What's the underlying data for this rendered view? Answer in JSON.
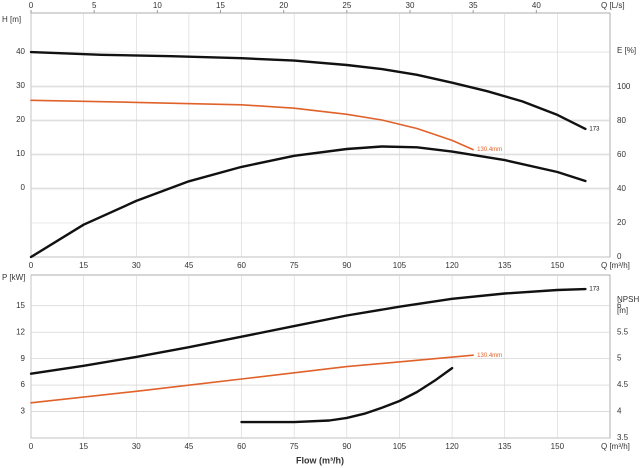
{
  "chart_data": [
    {
      "type": "line",
      "ylabel": "H [m]",
      "y2label": "E [%]",
      "x_axis_unit": "Q [m³/h]",
      "x2label": "Q [L/s]",
      "xlim": [
        0,
        165
      ],
      "xticks": [
        0,
        15,
        30,
        45,
        60,
        75,
        90,
        105,
        120,
        135,
        150
      ],
      "x2lim": [
        0,
        45.83
      ],
      "x2ticks": [
        0,
        5,
        10,
        15,
        20,
        25,
        30,
        35,
        40
      ],
      "ylim": [
        -20.3,
        51.5
      ],
      "yticks": [
        0,
        10,
        20,
        30,
        40
      ],
      "y2lim": [
        0,
        143.5
      ],
      "y2ticks": [
        0,
        20,
        40,
        60,
        80,
        100
      ],
      "grid": true,
      "series": [
        {
          "name": "173",
          "color": "#111111",
          "x": [
            0,
            20,
            40,
            60,
            75,
            90,
            100,
            110,
            120,
            130,
            140,
            150,
            158
          ],
          "values": [
            40,
            39.2,
            38.8,
            38.2,
            37.5,
            36.2,
            35,
            33.3,
            31,
            28.5,
            25.5,
            21.5,
            17.4
          ]
        },
        {
          "name": "130.4mm",
          "color": "#e0622a",
          "x": [
            0,
            30,
            60,
            75,
            90,
            100,
            110,
            120,
            126
          ],
          "values": [
            25.8,
            25.2,
            24.5,
            23.5,
            21.7,
            20,
            17.5,
            14,
            11.3
          ]
        },
        {
          "color": "#111111",
          "axis": "y2",
          "x": [
            0,
            15,
            30,
            45,
            60,
            75,
            90,
            100,
            110,
            120,
            135,
            150,
            158
          ],
          "values": [
            0,
            19,
            33,
            44.5,
            53,
            59.5,
            63.5,
            65,
            64.5,
            62,
            57,
            50,
            44.7
          ]
        }
      ]
    },
    {
      "type": "line",
      "ylabel": "P [kW]",
      "y2label": [
        "NPSH",
        "[m]"
      ],
      "x_axis_unit": "Q [m³/h]",
      "xlabel": "Flow (m³/h)",
      "xlim": [
        0,
        165
      ],
      "xticks": [
        0,
        15,
        30,
        45,
        60,
        75,
        90,
        105,
        120,
        135,
        150
      ],
      "ylim": [
        0,
        18.5
      ],
      "yticks": [
        3,
        6,
        9,
        12,
        15
      ],
      "y2lim": [
        3.5,
        6.58
      ],
      "y2ticks": [
        3.5,
        4,
        4.5,
        5,
        5.5,
        6
      ],
      "grid": true,
      "series": [
        {
          "name": "173",
          "color": "#111111",
          "x": [
            0,
            15,
            30,
            45,
            60,
            75,
            90,
            105,
            120,
            135,
            150,
            158
          ],
          "values": [
            7.3,
            8.2,
            9.2,
            10.3,
            11.5,
            12.7,
            13.9,
            14.9,
            15.8,
            16.4,
            16.8,
            16.9
          ]
        },
        {
          "name": "130.4mm",
          "color": "#e0622a",
          "x": [
            0,
            30,
            60,
            90,
            126
          ],
          "values": [
            4,
            5.3,
            6.7,
            8.1,
            9.4
          ]
        },
        {
          "color": "#111111",
          "axis": "y2",
          "x": [
            60,
            75,
            85,
            90,
            95,
            100,
            105,
            110,
            115,
            120
          ],
          "values": [
            3.8,
            3.8,
            3.83,
            3.88,
            3.96,
            4.07,
            4.2,
            4.37,
            4.58,
            4.82
          ]
        }
      ]
    }
  ]
}
